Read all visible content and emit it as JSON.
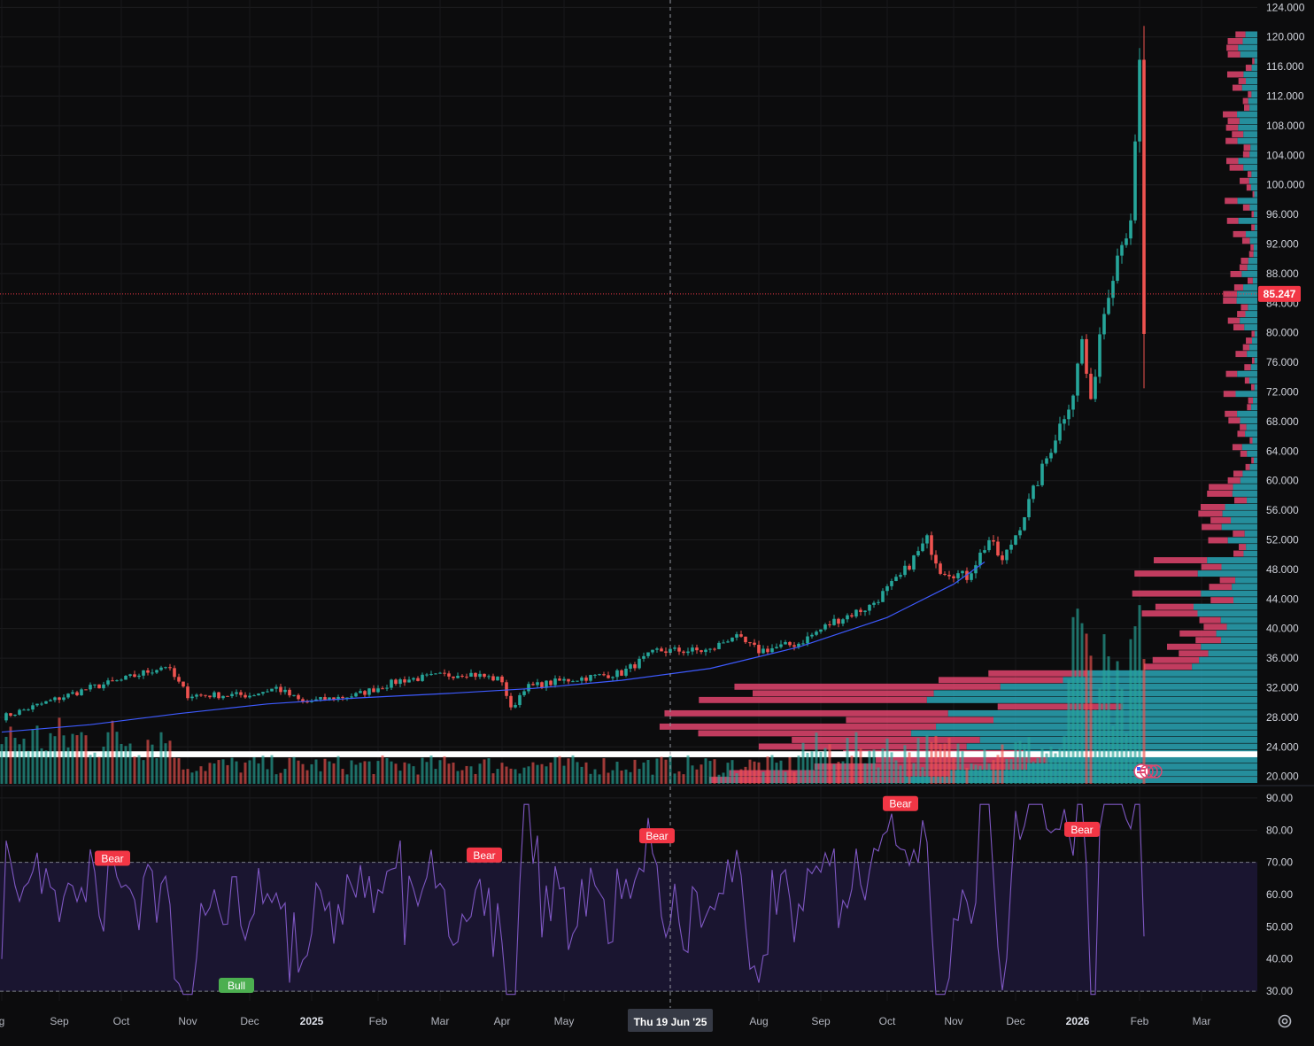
{
  "chart_data": {
    "type": "candlestick",
    "main_pane": {
      "y_ticks": [
        "124.000",
        "120.000",
        "116.000",
        "112.000",
        "108.000",
        "104.000",
        "100.000",
        "96.000",
        "92.000",
        "88.000",
        "84.000",
        "80.000",
        "76.000",
        "72.000",
        "68.000",
        "64.000",
        "60.000",
        "56.000",
        "52.000",
        "48.000",
        "44.000",
        "40.000",
        "36.000",
        "32.000",
        "28.000",
        "24.000",
        "20.000"
      ],
      "ylim": [
        19,
        125
      ],
      "last_price": "85.247",
      "last_price_value": 85.247,
      "moving_average": [
        [
          0,
          26.0
        ],
        [
          20,
          27.0
        ],
        [
          40,
          28.5
        ],
        [
          60,
          29.8
        ],
        [
          80,
          30.6
        ],
        [
          100,
          31.2
        ],
        [
          120,
          31.9
        ],
        [
          140,
          33.0
        ],
        [
          160,
          34.6
        ],
        [
          180,
          37.5
        ],
        [
          200,
          41.5
        ],
        [
          215,
          46.0
        ],
        [
          222,
          49.0
        ]
      ],
      "volume_profile_value_area_band": [
        22.6,
        23.4
      ],
      "colors": {
        "up": "#26a69a",
        "down": "#ef5350",
        "ma": "#3d5afe",
        "profile_up": "#2aa6b6",
        "profile_down": "#e2456e",
        "last_price": "#f23645"
      }
    },
    "rsi_pane": {
      "y_ticks": [
        "90.00",
        "80.00",
        "70.00",
        "60.00",
        "50.00",
        "40.00",
        "30.00"
      ],
      "ylim": [
        27,
        93
      ],
      "upper_band": 70,
      "lower_band": 30,
      "divergence_labels": [
        {
          "text": "Bear",
          "bar": 25,
          "value": 67
        },
        {
          "text": "Bull",
          "bar": 53,
          "value": 38
        },
        {
          "text": "Bear",
          "bar": 109,
          "value": 68
        },
        {
          "text": "Bear",
          "bar": 148,
          "value": 74
        },
        {
          "text": "Bear",
          "bar": 203,
          "value": 84
        },
        {
          "text": "Bear",
          "bar": 244,
          "value": 76
        }
      ]
    },
    "x_axis": {
      "labels": [
        {
          "text": "g",
          "bar": 0,
          "kind": "month"
        },
        {
          "text": "Sep",
          "bar": 13,
          "kind": "month"
        },
        {
          "text": "Oct",
          "bar": 27,
          "kind": "month"
        },
        {
          "text": "Nov",
          "bar": 42,
          "kind": "month"
        },
        {
          "text": "Dec",
          "bar": 56,
          "kind": "month"
        },
        {
          "text": "2025",
          "bar": 70,
          "kind": "year"
        },
        {
          "text": "Feb",
          "bar": 85,
          "kind": "month"
        },
        {
          "text": "Mar",
          "bar": 99,
          "kind": "month"
        },
        {
          "text": "Apr",
          "bar": 113,
          "kind": "month"
        },
        {
          "text": "May",
          "bar": 127,
          "kind": "month"
        },
        {
          "text": "Aug",
          "bar": 171,
          "kind": "month"
        },
        {
          "text": "Sep",
          "bar": 185,
          "kind": "month"
        },
        {
          "text": "Oct",
          "bar": 200,
          "kind": "month"
        },
        {
          "text": "Nov",
          "bar": 215,
          "kind": "month"
        },
        {
          "text": "Dec",
          "bar": 229,
          "kind": "month"
        },
        {
          "text": "2026",
          "bar": 243,
          "kind": "year"
        },
        {
          "text": "Feb",
          "bar": 257,
          "kind": "month"
        },
        {
          "text": "Mar",
          "bar": 271,
          "kind": "month"
        }
      ],
      "crosshair_label": "Thu 19 Jun '25",
      "crosshair_bar": 151
    },
    "last_bar": 258
  },
  "icons": {
    "settings": "gear-icon",
    "flag": "us-flag-icon"
  }
}
